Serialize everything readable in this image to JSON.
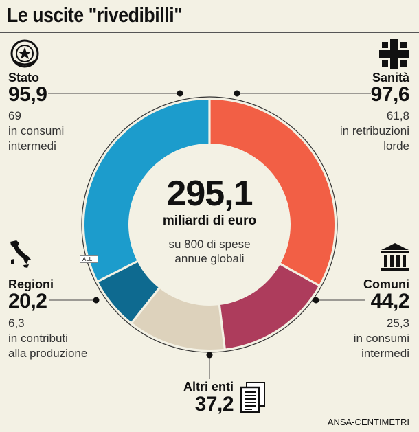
{
  "title": "Le uscite \"rivedibilli\"",
  "chart_data": {
    "type": "donut",
    "total": {
      "value": "295,1",
      "unit": "miliardi di euro",
      "sub_line1": "su 800 di spese",
      "sub_line2": "annue globali"
    },
    "slices": [
      {
        "name": "Sanità",
        "value": 97.6,
        "value_label": "97,6",
        "note_value": "61,8",
        "note_line1": "in retribuzioni",
        "note_line2": "lorde",
        "color": "#f25f45"
      },
      {
        "name": "Comuni",
        "value": 44.2,
        "value_label": "44,2",
        "note_value": "25,3",
        "note_line1": "in consumi",
        "note_line2": "intermedi",
        "color": "#ad3c5c"
      },
      {
        "name": "Altri enti",
        "value": 37.2,
        "value_label": "37,2",
        "color": "#ddd2bc"
      },
      {
        "name": "Regioni",
        "value": 20.2,
        "value_label": "20,2",
        "note_value": "6,3",
        "note_line1": "in contributi",
        "note_line2": "alla produzione",
        "color": "#0e6a90"
      },
      {
        "name": "Stato",
        "value": 95.9,
        "value_label": "95,9",
        "note_value": "69",
        "note_line1": "in consumi",
        "note_line2": "intermedi",
        "color": "#1c9ccc"
      }
    ]
  },
  "tag": "ALL_",
  "source": "ANSA-CENTIMETRI",
  "icons": {
    "stato": "state-emblem-icon",
    "sanita": "health-cross-icon",
    "regioni": "italy-map-icon",
    "comuni": "town-hall-icon",
    "altri": "documents-icon"
  }
}
